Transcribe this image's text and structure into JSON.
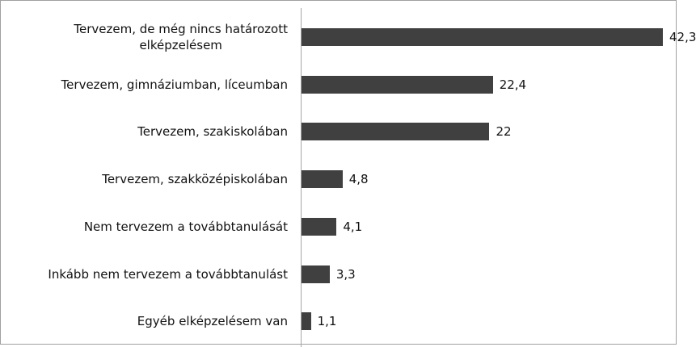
{
  "chart_data": {
    "type": "bar",
    "orientation": "horizontal",
    "categories": [
      "Tervezem, de még nincs határozott\nelképzelésem",
      "Tervezem,  gimnáziumban, líceumban",
      "Tervezem, szakiskolában",
      "Tervezem, szakközépiskolában",
      "Nem tervezem a továbbtanulását",
      "Inkább nem tervezem a továbbtanulást",
      "Egyéb elképzelésem van"
    ],
    "values": [
      42.3,
      22.4,
      22,
      4.8,
      4.1,
      3.3,
      1.1
    ],
    "value_labels": [
      "42,3",
      "22,4",
      "22",
      "4,8",
      "4,1",
      "3,3",
      "1,1"
    ],
    "color": "#404040"
  }
}
